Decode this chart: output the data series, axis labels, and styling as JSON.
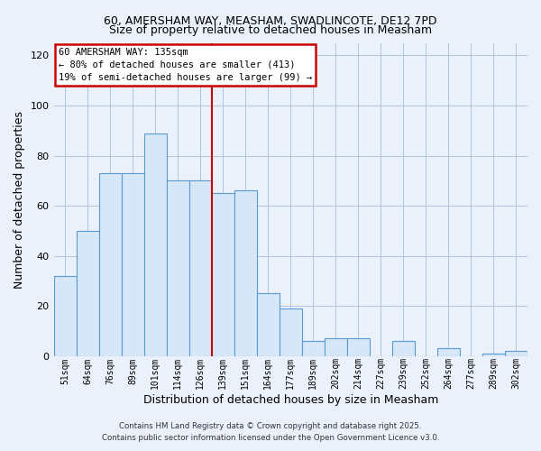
{
  "title": "60, AMERSHAM WAY, MEASHAM, SWADLINCOTE, DE12 7PD",
  "subtitle": "Size of property relative to detached houses in Measham",
  "xlabel": "Distribution of detached houses by size in Measham",
  "ylabel": "Number of detached properties",
  "bar_labels": [
    "51sqm",
    "64sqm",
    "76sqm",
    "89sqm",
    "101sqm",
    "114sqm",
    "126sqm",
    "139sqm",
    "151sqm",
    "164sqm",
    "177sqm",
    "189sqm",
    "202sqm",
    "214sqm",
    "227sqm",
    "239sqm",
    "252sqm",
    "264sqm",
    "277sqm",
    "289sqm",
    "302sqm"
  ],
  "bar_values": [
    32,
    50,
    73,
    73,
    89,
    70,
    70,
    65,
    66,
    25,
    19,
    6,
    7,
    7,
    0,
    6,
    0,
    3,
    0,
    1,
    2
  ],
  "bar_color": "#d6e8f7",
  "bar_edge_color": "#5b9bd5",
  "vline_color": "#cc0000",
  "vline_x_index": 7,
  "ylim": [
    0,
    125
  ],
  "yticks": [
    0,
    20,
    40,
    60,
    80,
    100,
    120
  ],
  "annotation_title": "60 AMERSHAM WAY: 135sqm",
  "annotation_line1": "← 80% of detached houses are smaller (413)",
  "annotation_line2": "19% of semi-detached houses are larger (99) →",
  "footer1": "Contains HM Land Registry data © Crown copyright and database right 2025.",
  "footer2": "Contains public sector information licensed under the Open Government Licence v3.0.",
  "bg_color": "#eaf1fb",
  "plot_bg_color": "#eaf1fb",
  "grid_color": "#b0c4de",
  "title_fontsize": 9,
  "subtitle_fontsize": 9
}
